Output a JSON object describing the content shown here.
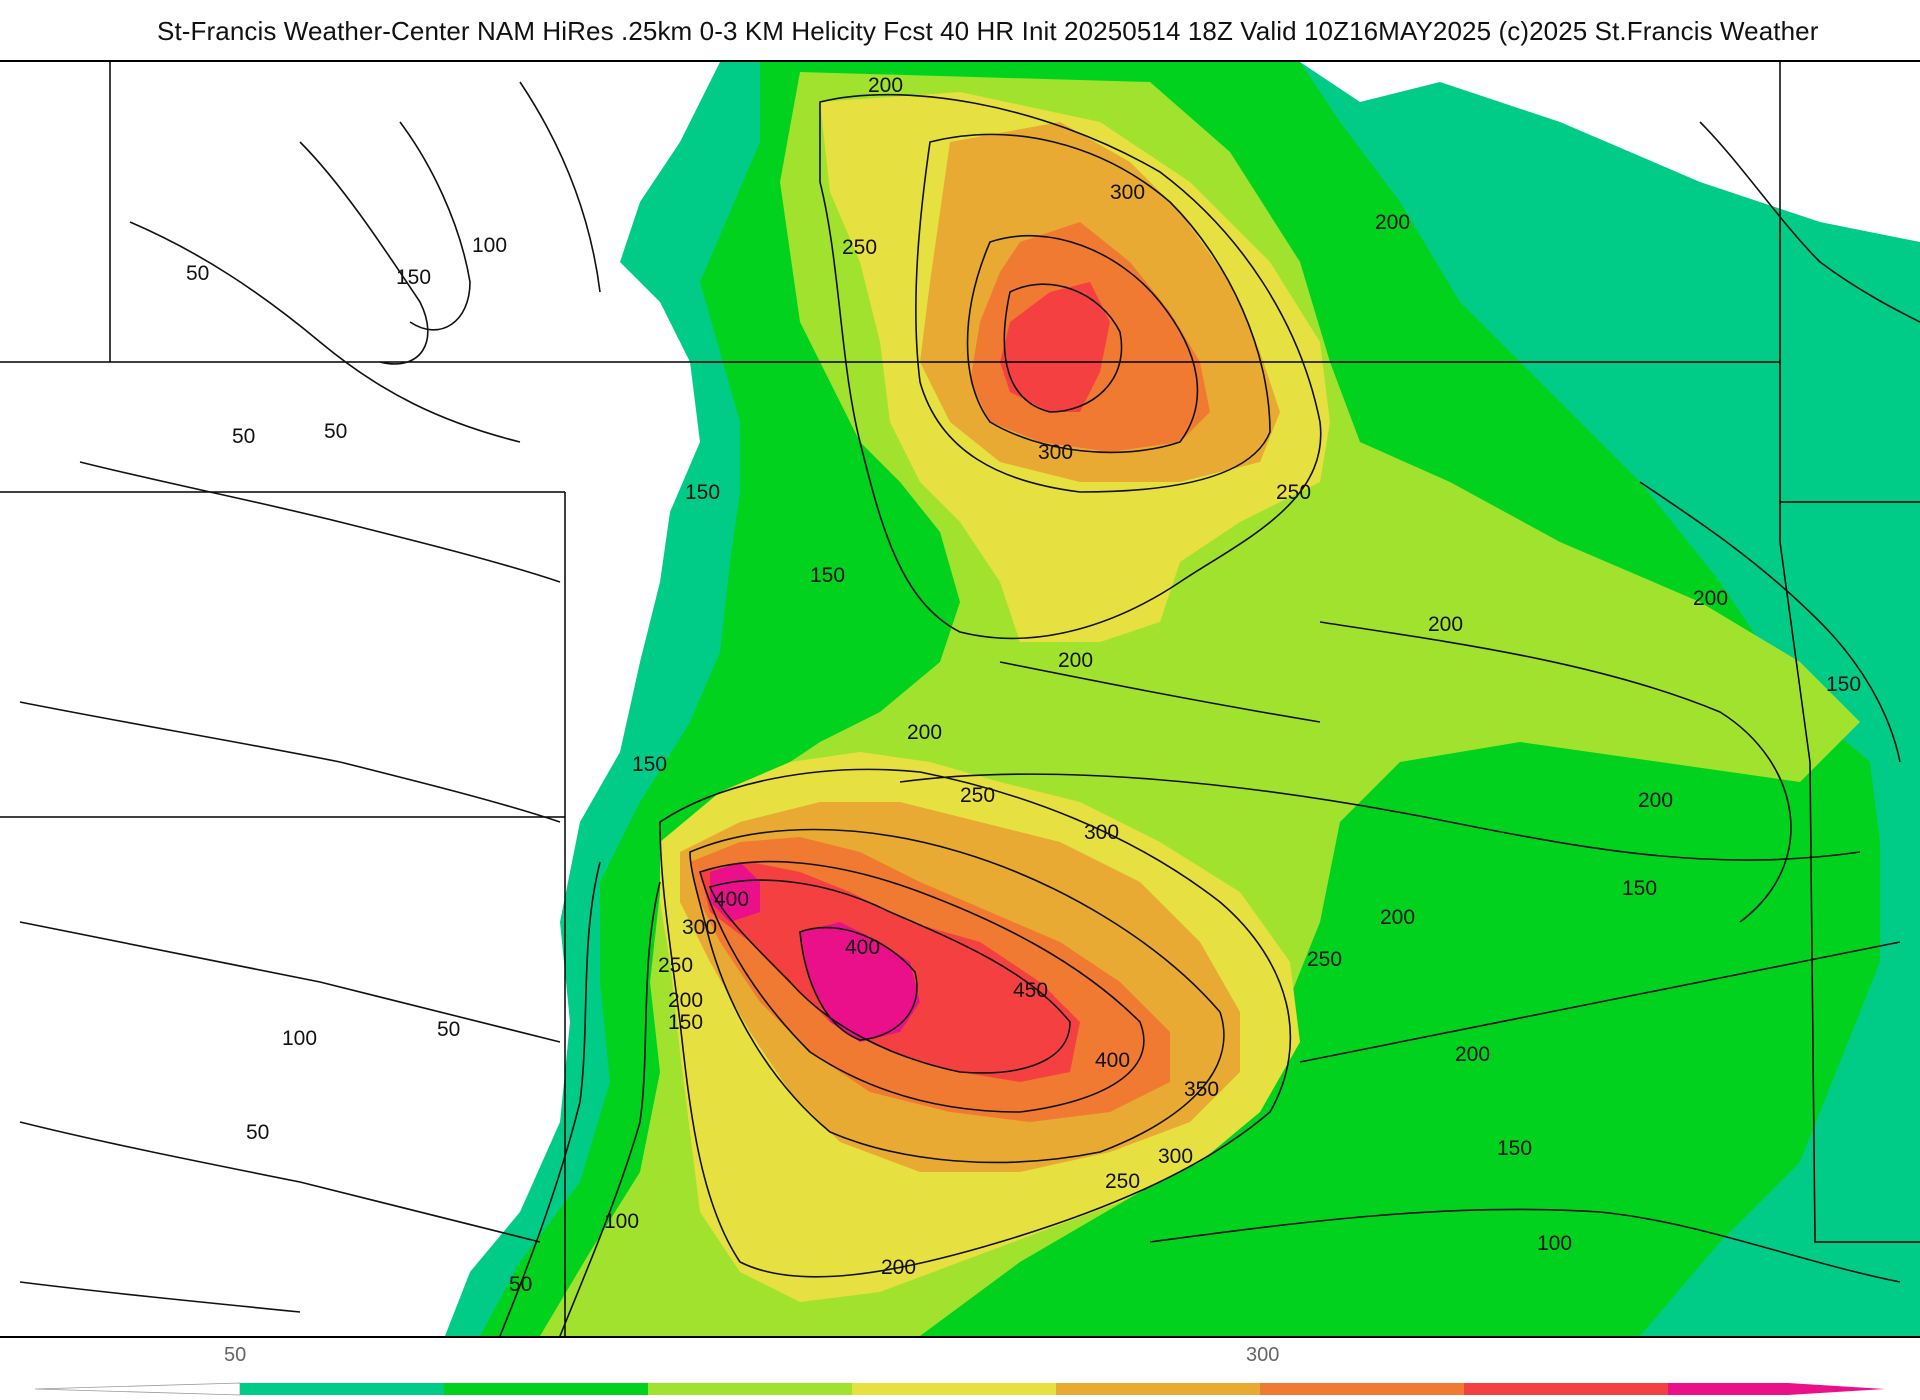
{
  "header": {
    "title": "St-Francis Weather-Center NAM HiRes .25km 0-3 KM Helicity Fcst 40 HR Init 20250514 18Z  Valid 10Z16MAY2025    (c)2025 St.Francis Weather"
  },
  "map": {
    "field": "0-3 KM Helicity",
    "contour_labels": [
      "200",
      "300",
      "200",
      "250",
      "100",
      "150",
      "50",
      "300",
      "250",
      "150",
      "50",
      "50",
      "150",
      "200",
      "200",
      "200",
      "150",
      "200",
      "250",
      "300",
      "150",
      "150",
      "200",
      "200",
      "400",
      "300",
      "400",
      "250",
      "450",
      "250",
      "200",
      "150",
      "400",
      "100",
      "50",
      "350",
      "200",
      "300",
      "250",
      "150",
      "50",
      "100",
      "100",
      "50",
      "200"
    ],
    "colors": {
      "shade_50": "#00cc88",
      "shade_100": "#00d21e",
      "shade_150": "#a0e22e",
      "shade_200": "#e6e040",
      "shade_250": "#e8aa32",
      "shade_300": "#f07a32",
      "shade_350": "#f44040",
      "shade_400": "#ea108a",
      "contour": "#111111",
      "border": "#000000",
      "county": "#cccccc"
    }
  },
  "legend": {
    "tick_labels": [
      "50",
      "300"
    ],
    "colors": [
      "#00cc88",
      "#00d21e",
      "#a0e22e",
      "#e6e040",
      "#e8aa32",
      "#f07a32",
      "#f44040",
      "#ea108a"
    ]
  }
}
